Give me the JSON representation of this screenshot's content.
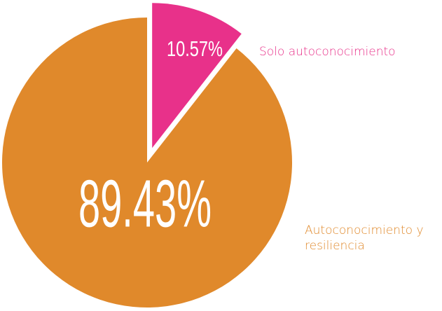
{
  "chart_data": {
    "type": "pie",
    "categories": [
      "Solo autoconocimiento",
      "Autoconocimiento y resiliencia"
    ],
    "values": [
      10.57,
      89.43
    ],
    "value_labels": [
      "10.57%",
      "89.43%"
    ],
    "colors": [
      "#e8318a",
      "#e0892b"
    ]
  }
}
